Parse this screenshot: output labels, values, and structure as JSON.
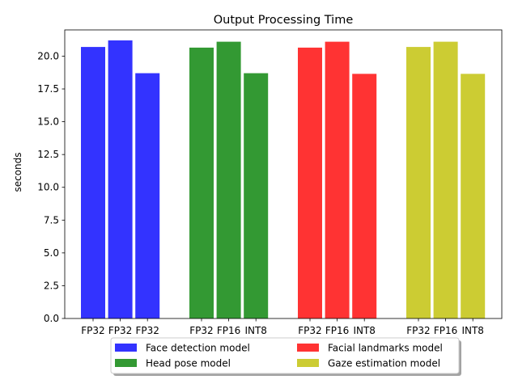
{
  "chart_data": {
    "type": "bar",
    "title": "Output Processing Time",
    "xlabel": "",
    "ylabel": "seconds",
    "ylim": [
      0,
      22
    ],
    "yticks": [
      "0.0",
      "2.5",
      "5.0",
      "7.5",
      "10.0",
      "12.5",
      "15.0",
      "17.5",
      "20.0"
    ],
    "grid": false,
    "legend_position": "bottom-center",
    "groups": [
      {
        "name": "Face detection model",
        "color": "#3333ff",
        "labels": [
          "FP32",
          "FP32",
          "FP32"
        ],
        "values": [
          20.7,
          21.2,
          18.7
        ]
      },
      {
        "name": "Head pose model",
        "color": "#339933",
        "labels": [
          "FP32",
          "FP16",
          "INT8"
        ],
        "values": [
          20.65,
          21.1,
          18.7
        ]
      },
      {
        "name": "Facial landmarks model",
        "color": "#ff3333",
        "labels": [
          "FP32",
          "FP16",
          "INT8"
        ],
        "values": [
          20.65,
          21.1,
          18.65
        ]
      },
      {
        "name": "Gaze estimation model",
        "color": "#cccc33",
        "labels": [
          "FP32",
          "FP16",
          "INT8"
        ],
        "values": [
          20.7,
          21.1,
          18.65
        ]
      }
    ]
  }
}
